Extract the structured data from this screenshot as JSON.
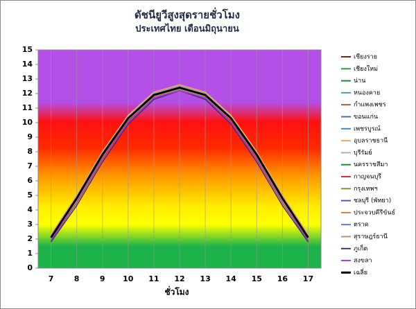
{
  "chart_data": {
    "type": "line",
    "title": "ดัชนียูวีสูงสุดรายชั่วโมง",
    "subtitle": "ประเทศไทย  เดือนมิถุนายน",
    "x_label": "ชั่วโมง",
    "categories": [
      "7",
      "8",
      "9",
      "10",
      "11",
      "12",
      "13",
      "14",
      "15",
      "16",
      "17"
    ],
    "ylim": [
      0,
      15
    ],
    "yticks": [
      0,
      1,
      2,
      3,
      4,
      5,
      6,
      7,
      8,
      9,
      10,
      11,
      12,
      13,
      14,
      15
    ],
    "legend": "right",
    "series": [
      {
        "name": "เชียงราย",
        "color": "#8b1a1a",
        "values": [
          2.0,
          4.7,
          7.7,
          10.2,
          11.8,
          12.3,
          11.8,
          10.2,
          7.7,
          4.7,
          2.0
        ]
      },
      {
        "name": "เชียงใหม่",
        "color": "#2e9e3e",
        "values": [
          2.1,
          4.8,
          7.8,
          10.3,
          11.9,
          12.4,
          11.9,
          10.3,
          7.8,
          4.8,
          2.1
        ]
      },
      {
        "name": "น่าน",
        "color": "#1a8a3a",
        "values": [
          2.2,
          4.9,
          7.9,
          10.4,
          12.0,
          12.5,
          12.0,
          10.4,
          7.9,
          4.9,
          2.2
        ]
      },
      {
        "name": "หนองคาย",
        "color": "#4f9aa8",
        "values": [
          2.3,
          5.0,
          8.0,
          10.5,
          12.1,
          12.6,
          12.1,
          10.5,
          8.0,
          5.0,
          2.3
        ]
      },
      {
        "name": "กำแพงเพชร",
        "color": "#a0622d",
        "values": [
          2.1,
          4.8,
          7.8,
          10.3,
          11.9,
          12.4,
          11.9,
          10.3,
          7.8,
          4.8,
          2.1
        ]
      },
      {
        "name": "ขอนแก่น",
        "color": "#4a6fa5",
        "values": [
          2.2,
          4.9,
          7.9,
          10.4,
          12.0,
          12.5,
          12.0,
          10.4,
          7.9,
          4.9,
          2.2
        ]
      },
      {
        "name": "เพชรบูรณ์",
        "color": "#3c8fb0",
        "values": [
          2.1,
          4.8,
          7.8,
          10.3,
          11.9,
          12.4,
          11.9,
          10.3,
          7.8,
          4.8,
          2.1
        ]
      },
      {
        "name": "อุบลราชธานี",
        "color": "#f0a868",
        "values": [
          2.3,
          5.0,
          8.0,
          10.5,
          12.1,
          12.6,
          12.1,
          10.5,
          8.0,
          5.0,
          2.3
        ]
      },
      {
        "name": "บุรีรัมย์",
        "color": "#b0b0b0",
        "values": [
          2.2,
          4.9,
          7.9,
          10.4,
          12.0,
          12.5,
          12.0,
          10.4,
          7.9,
          4.9,
          2.2
        ]
      },
      {
        "name": "นครราชสีมา",
        "color": "#1f8a3a",
        "values": [
          2.1,
          4.8,
          7.8,
          10.3,
          11.9,
          12.4,
          11.9,
          10.3,
          7.8,
          4.8,
          2.1
        ]
      },
      {
        "name": "กาญจนบุรี",
        "color": "#c0392b",
        "values": [
          2.0,
          4.7,
          7.7,
          10.2,
          11.8,
          12.3,
          11.8,
          10.2,
          7.7,
          4.7,
          2.0
        ]
      },
      {
        "name": "กรุงเทพฯ",
        "color": "#8a8f3a",
        "values": [
          2.1,
          4.8,
          7.8,
          10.3,
          11.9,
          12.4,
          11.9,
          10.3,
          7.8,
          4.8,
          2.1
        ]
      },
      {
        "name": "ชลบุรี (พัทยา)",
        "color": "#6a4fa0",
        "values": [
          2.0,
          4.7,
          7.7,
          10.2,
          11.8,
          12.3,
          11.8,
          10.2,
          7.7,
          4.7,
          2.0
        ]
      },
      {
        "name": "ประจวบคีรีขันธ์",
        "color": "#d4803a",
        "values": [
          1.9,
          4.5,
          7.5,
          10.0,
          11.7,
          12.2,
          11.7,
          10.0,
          7.5,
          4.5,
          1.9
        ]
      },
      {
        "name": "ตราด",
        "color": "#5b7fb5",
        "values": [
          1.9,
          4.5,
          7.5,
          10.0,
          11.7,
          12.2,
          11.7,
          10.0,
          7.5,
          4.5,
          1.9
        ]
      },
      {
        "name": "สุราษฎร์ธานี",
        "color": "#c09070",
        "values": [
          2.0,
          4.7,
          7.7,
          10.2,
          11.8,
          12.3,
          11.8,
          10.2,
          7.7,
          4.7,
          2.0
        ]
      },
      {
        "name": "ภูเก็ต",
        "color": "#4b2a7a",
        "values": [
          1.8,
          4.3,
          7.3,
          9.9,
          11.6,
          12.2,
          11.6,
          9.9,
          7.3,
          4.3,
          1.8
        ]
      },
      {
        "name": "สงขลา",
        "color": "#9b3fc0",
        "values": [
          1.9,
          4.5,
          7.5,
          10.0,
          11.7,
          12.2,
          11.7,
          10.0,
          7.5,
          4.5,
          1.9
        ]
      },
      {
        "name": "เฉลี่ย",
        "color": "#000000",
        "values": [
          2.1,
          4.8,
          7.8,
          10.3,
          11.9,
          12.4,
          11.9,
          10.3,
          7.8,
          4.8,
          2.1
        ]
      }
    ]
  }
}
